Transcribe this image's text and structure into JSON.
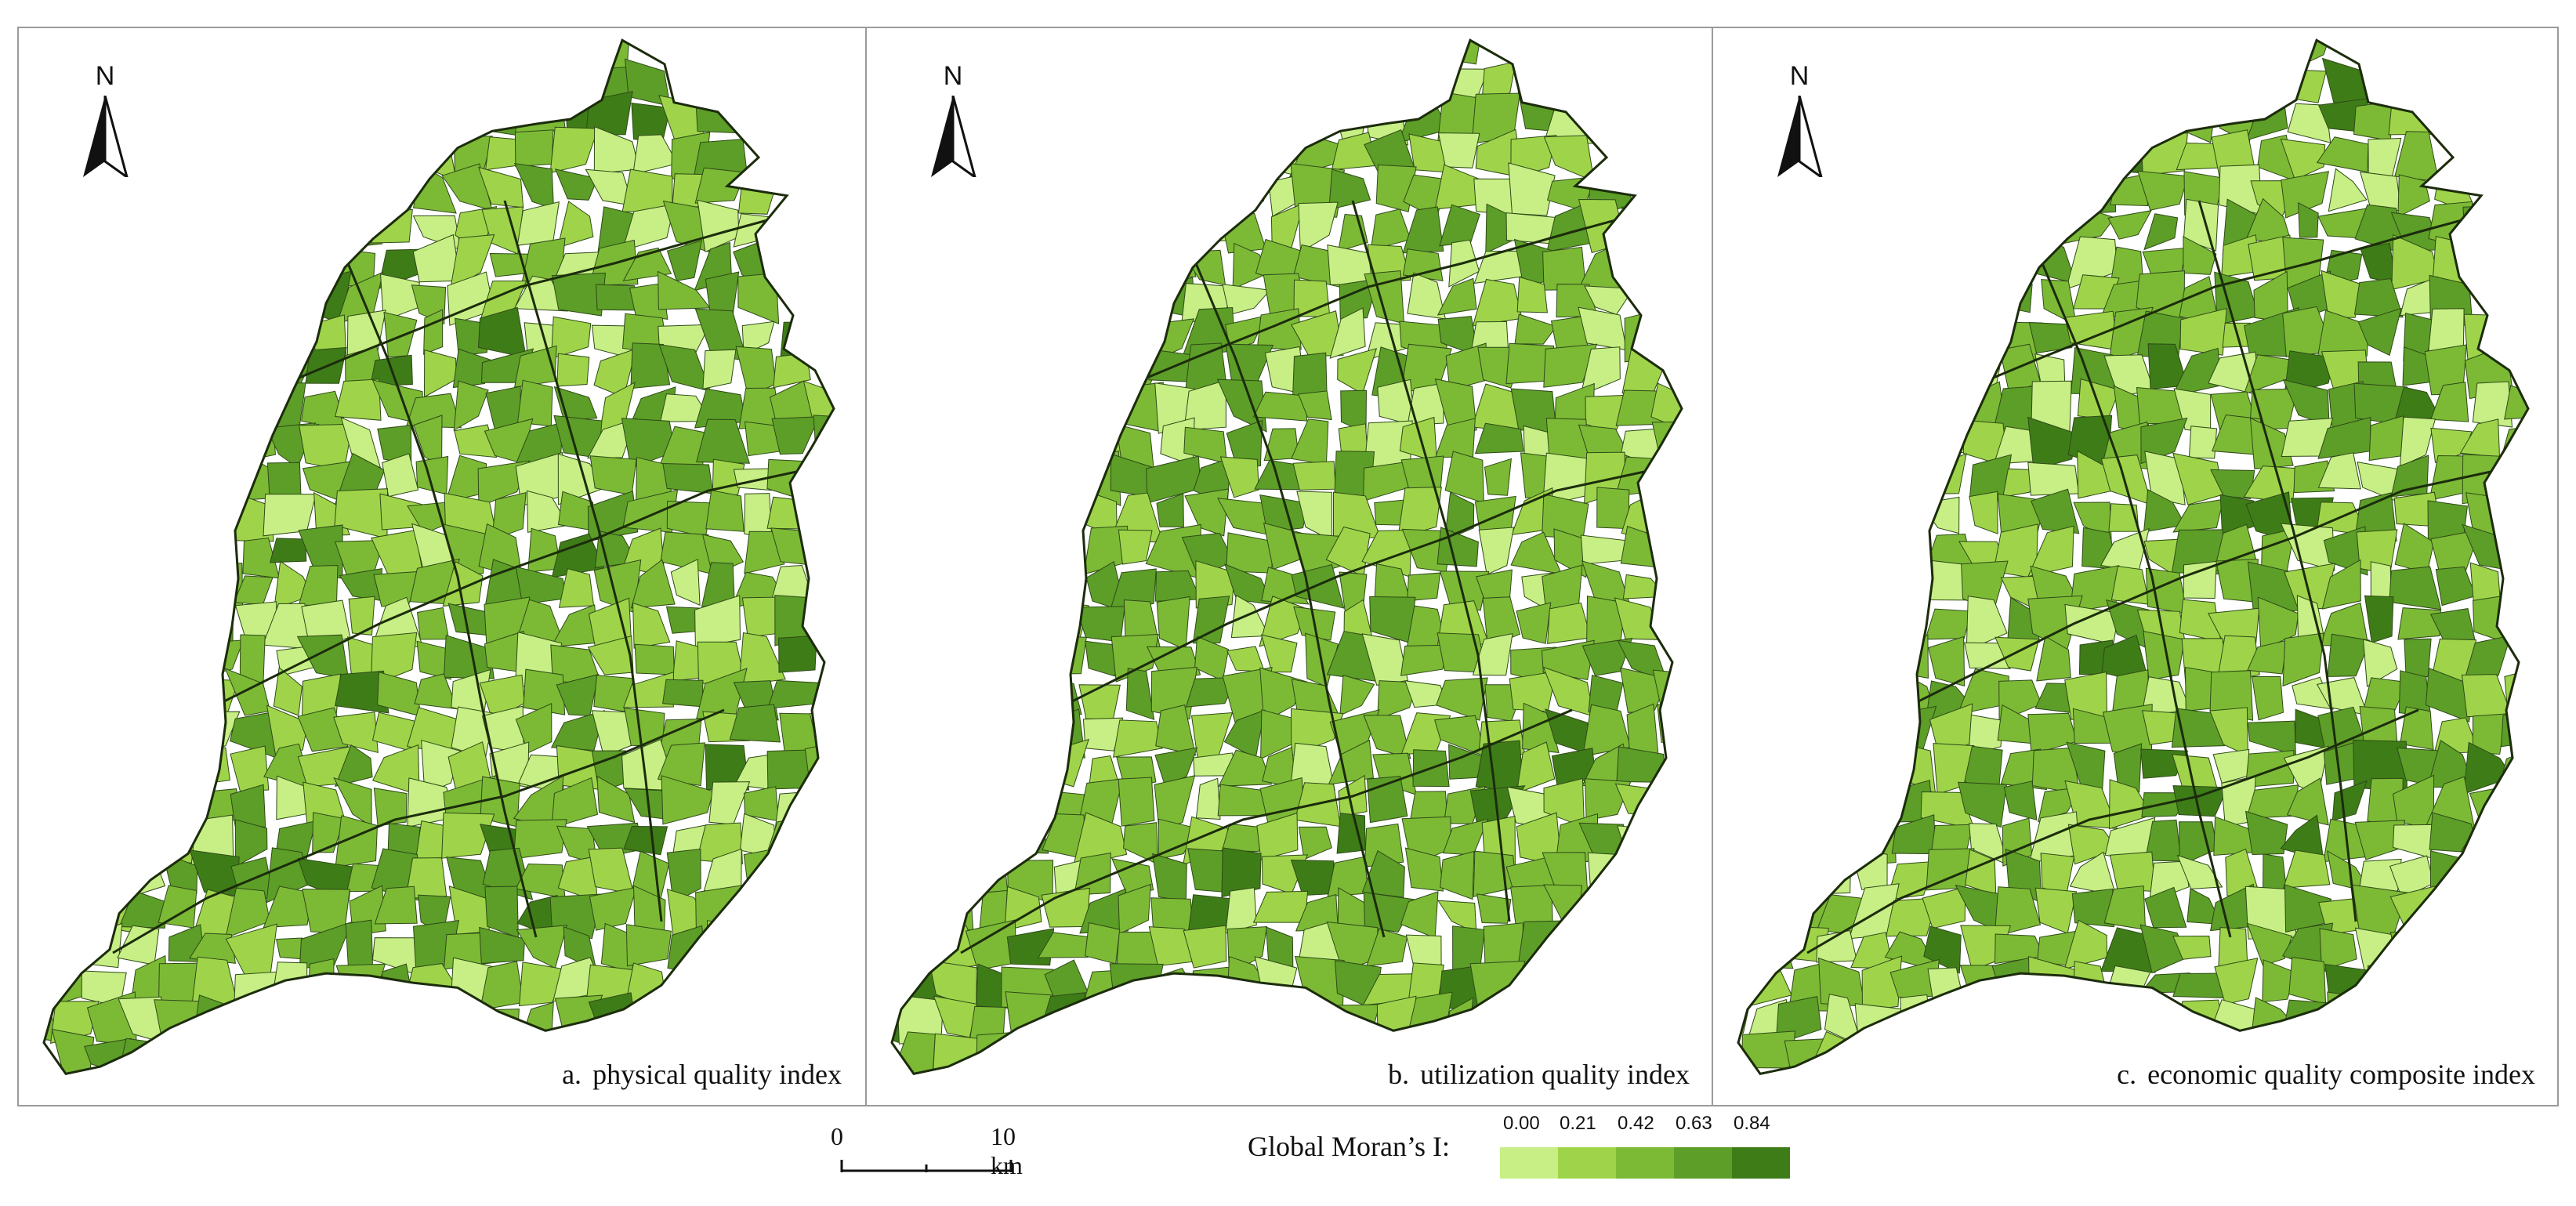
{
  "panels": [
    {
      "id": "a",
      "tag": "a.",
      "title": "physical quality index",
      "north": "N"
    },
    {
      "id": "b",
      "tag": "b.",
      "title": "utilization quality index",
      "north": "N"
    },
    {
      "id": "c",
      "tag": "c.",
      "title": "economic quality composite index",
      "north": "N"
    }
  ],
  "scale_bar": {
    "zero": "0",
    "max": "10 km"
  },
  "legend": {
    "title": "Global Moran’s I:",
    "ticks": [
      "0.00",
      "0.21",
      "0.42",
      "0.63",
      "0.84"
    ],
    "colors": [
      "#c7ef85",
      "#9fd44a",
      "#7cba36",
      "#5c9e28",
      "#3e7c18"
    ]
  },
  "colors": {
    "frame": "#9a9a9a",
    "boundary": "#2a3a16",
    "north_arrow": "#111111"
  }
}
